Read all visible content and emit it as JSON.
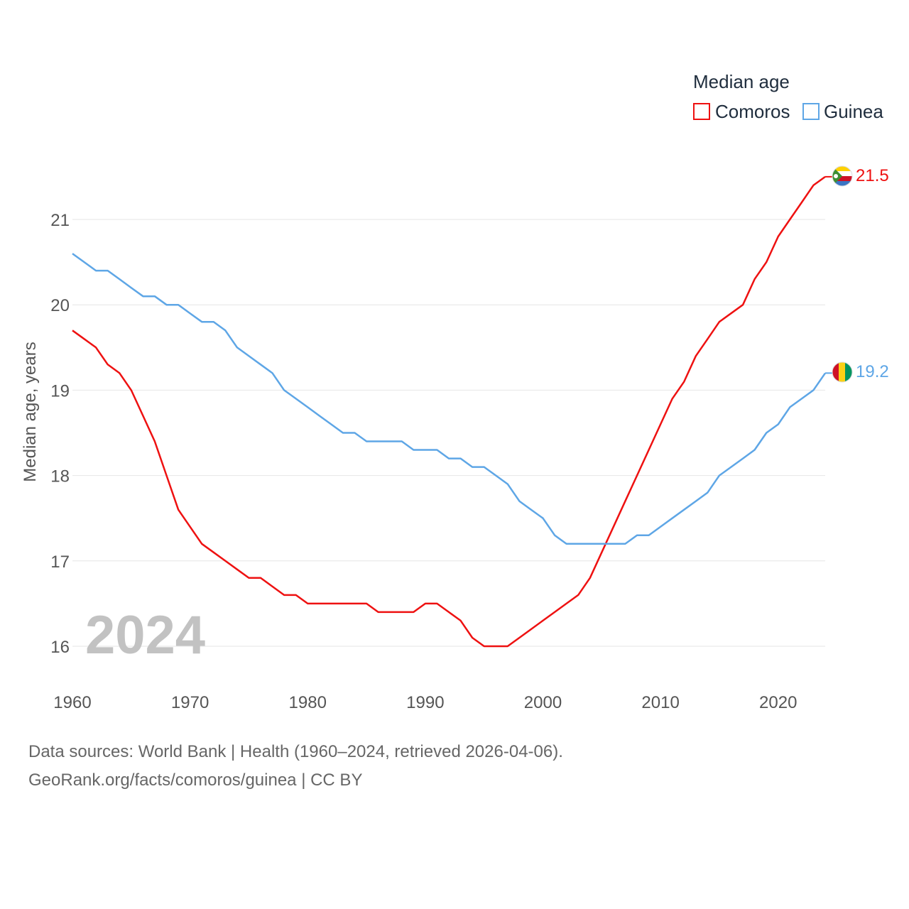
{
  "chart_data": {
    "type": "line",
    "title": "",
    "xlabel": "",
    "ylabel": "Median age, years",
    "xlim": [
      1960,
      2024
    ],
    "ylim": [
      15.6,
      21.9
    ],
    "x_ticks": [
      1960,
      1970,
      1980,
      1990,
      2000,
      2010,
      2020
    ],
    "y_ticks": [
      16,
      17,
      18,
      19,
      20,
      21
    ],
    "grid": true,
    "legend": {
      "title": "Median age",
      "position": "top-right"
    },
    "year_label": "2024",
    "x": [
      1960,
      1961,
      1962,
      1963,
      1964,
      1965,
      1966,
      1967,
      1968,
      1969,
      1970,
      1971,
      1972,
      1973,
      1974,
      1975,
      1976,
      1977,
      1978,
      1979,
      1980,
      1981,
      1982,
      1983,
      1984,
      1985,
      1986,
      1987,
      1988,
      1989,
      1990,
      1991,
      1992,
      1993,
      1994,
      1995,
      1996,
      1997,
      1998,
      1999,
      2000,
      2001,
      2002,
      2003,
      2004,
      2005,
      2006,
      2007,
      2008,
      2009,
      2010,
      2011,
      2012,
      2013,
      2014,
      2015,
      2016,
      2017,
      2018,
      2019,
      2020,
      2021,
      2022,
      2023,
      2024
    ],
    "series": [
      {
        "name": "Comoros",
        "color": "#ee1111",
        "end_label": "21.5",
        "flag": "comoros-flag",
        "values": [
          19.7,
          19.6,
          19.5,
          19.3,
          19.2,
          19.0,
          18.7,
          18.4,
          18.0,
          17.6,
          17.4,
          17.2,
          17.1,
          17.0,
          16.9,
          16.8,
          16.8,
          16.7,
          16.6,
          16.6,
          16.5,
          16.5,
          16.5,
          16.5,
          16.5,
          16.5,
          16.4,
          16.4,
          16.4,
          16.4,
          16.5,
          16.5,
          16.4,
          16.3,
          16.1,
          16.0,
          16.0,
          16.0,
          16.1,
          16.2,
          16.3,
          16.4,
          16.5,
          16.6,
          16.8,
          17.1,
          17.4,
          17.7,
          18.0,
          18.3,
          18.6,
          18.9,
          19.1,
          19.4,
          19.6,
          19.8,
          19.9,
          20.0,
          20.3,
          20.5,
          20.8,
          21.0,
          21.2,
          21.4,
          21.5
        ]
      },
      {
        "name": "Guinea",
        "color": "#5ea6e6",
        "end_label": "19.2",
        "flag": "guinea-flag",
        "values": [
          20.6,
          20.5,
          20.4,
          20.4,
          20.3,
          20.2,
          20.1,
          20.1,
          20.0,
          20.0,
          19.9,
          19.8,
          19.8,
          19.7,
          19.5,
          19.4,
          19.3,
          19.2,
          19.0,
          18.9,
          18.8,
          18.7,
          18.6,
          18.5,
          18.5,
          18.4,
          18.4,
          18.4,
          18.4,
          18.3,
          18.3,
          18.3,
          18.2,
          18.2,
          18.1,
          18.1,
          18.0,
          17.9,
          17.7,
          17.6,
          17.5,
          17.3,
          17.2,
          17.2,
          17.2,
          17.2,
          17.2,
          17.2,
          17.3,
          17.3,
          17.4,
          17.5,
          17.6,
          17.7,
          17.8,
          18.0,
          18.1,
          18.2,
          18.3,
          18.5,
          18.6,
          18.8,
          18.9,
          19.0,
          19.2
        ]
      }
    ]
  },
  "footer": {
    "source": "Data sources: World Bank | Health (1960–2024, retrieved 2026-04-06).",
    "credit": "GeoRank.org/facts/comoros/guinea | CC BY"
  }
}
